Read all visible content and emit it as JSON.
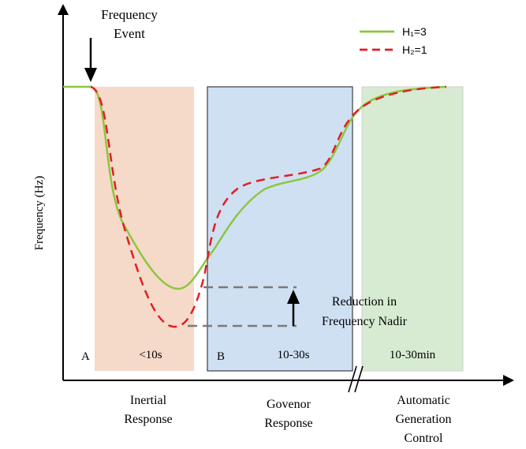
{
  "axes": {
    "ylabel": "Frequency (Hz)"
  },
  "event": {
    "label_line1": "Frequency",
    "label_line2": "Event"
  },
  "legend": {
    "h1": {
      "label": "H₁=3",
      "color": "#8dc63f"
    },
    "h2": {
      "label": "H₂=1",
      "color": "#e31e24"
    }
  },
  "regions": {
    "inertial": {
      "letter": "A",
      "time": "<10s",
      "fill": "#f5d9c9"
    },
    "governor": {
      "letter": "B",
      "time": "10-30s",
      "fill": "#cfe0f3"
    },
    "agc": {
      "time": "10-30min",
      "fill": "#d6ebd1"
    }
  },
  "nadir": {
    "line1": "Reduction in",
    "line2": "Frequency Nadir"
  },
  "phases": {
    "inertial": {
      "line1": "Inertial",
      "line2": "Response"
    },
    "governor": {
      "line1": "Govenor",
      "line2": "Response"
    },
    "agc": {
      "line1": "Automatic",
      "line2": "Generation",
      "line3": "Control"
    }
  }
}
